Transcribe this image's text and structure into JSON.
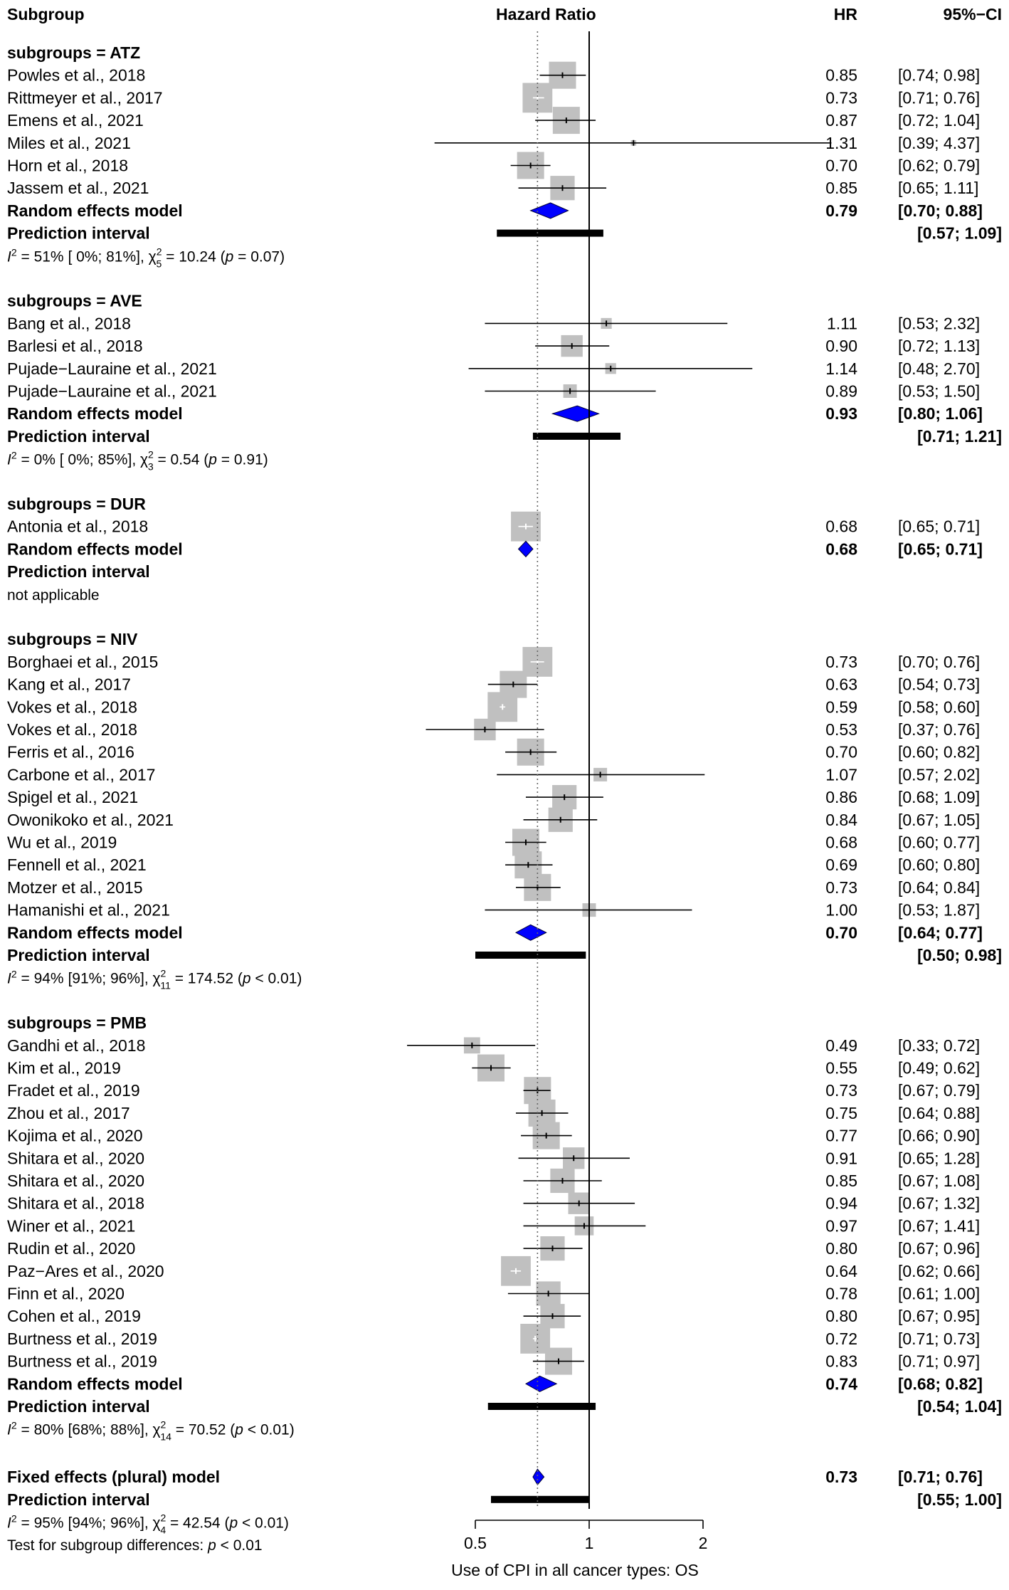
{
  "chart_data": {
    "type": "forest",
    "title": "",
    "header": {
      "subgroup": "Subgroup",
      "plot": "Hazard Ratio",
      "hr": "HR",
      "ci": "95%−CI"
    },
    "xlabel": "Use of CPI in all cancer types: OS",
    "xscale": "log",
    "xlim": [
      0.5,
      2
    ],
    "xticks": [
      0.5,
      1,
      2
    ],
    "xtick_labels": [
      "0.5",
      "1",
      "2"
    ],
    "reference_line": 1,
    "overall_line": 0.73,
    "groups": [
      {
        "label": "subgroups = ATZ",
        "studies": [
          {
            "name": "Powles et al., 2018",
            "hr": 0.85,
            "lo": 0.74,
            "hi": 0.98,
            "hr_text": "0.85",
            "ci_text": "[0.74; 0.98]",
            "w": 1.0
          },
          {
            "name": "Rittmeyer et al., 2017",
            "hr": 0.73,
            "lo": 0.71,
            "hi": 0.76,
            "hr_text": "0.73",
            "ci_text": "[0.71; 0.76]",
            "w": 1.1
          },
          {
            "name": "Emens et al., 2021",
            "hr": 0.87,
            "lo": 0.72,
            "hi": 1.04,
            "hr_text": "0.87",
            "ci_text": "[0.72; 1.04]",
            "w": 1.0
          },
          {
            "name": "Miles et al., 2021",
            "hr": 1.31,
            "lo": 0.39,
            "hi": 4.37,
            "hr_text": "1.31",
            "ci_text": "[0.39; 4.37]",
            "w": 0.2
          },
          {
            "name": "Horn et al., 2018",
            "hr": 0.7,
            "lo": 0.62,
            "hi": 0.79,
            "hr_text": "0.70",
            "ci_text": "[0.62; 0.79]",
            "w": 1.0
          },
          {
            "name": "Jassem  et al., 2021",
            "hr": 0.85,
            "lo": 0.65,
            "hi": 1.11,
            "hr_text": "0.85",
            "ci_text": "[0.65; 1.11]",
            "w": 0.9
          }
        ],
        "random": {
          "label": "Random effects model",
          "hr": 0.79,
          "lo": 0.7,
          "hi": 0.88,
          "hr_text": "0.79",
          "ci_text": "[0.70; 0.88]"
        },
        "prediction": {
          "label": "Prediction interval",
          "lo": 0.57,
          "hi": 1.09,
          "ci_text": "[0.57; 1.09]"
        },
        "het": {
          "i2": "51%",
          "ci": "[ 0%; 81%]",
          "df": "5",
          "chi": "10.24",
          "p": "= 0.07"
        }
      },
      {
        "label": "subgroups = AVE",
        "studies": [
          {
            "name": "Bang et al., 2018",
            "hr": 1.11,
            "lo": 0.53,
            "hi": 2.32,
            "hr_text": "1.11",
            "ci_text": "[0.53; 2.32]",
            "w": 0.4
          },
          {
            "name": "Barlesi et al., 2018",
            "hr": 0.9,
            "lo": 0.72,
            "hi": 1.13,
            "hr_text": "0.90",
            "ci_text": "[0.72; 1.13]",
            "w": 0.8
          },
          {
            "name": "Pujade−Lauraine et al., 2021",
            "hr": 1.14,
            "lo": 0.48,
            "hi": 2.7,
            "hr_text": "1.14",
            "ci_text": "[0.48; 2.70]",
            "w": 0.4
          },
          {
            "name": "Pujade−Lauraine et al., 2021",
            "hr": 0.89,
            "lo": 0.53,
            "hi": 1.5,
            "hr_text": "0.89",
            "ci_text": "[0.53; 1.50]",
            "w": 0.5
          }
        ],
        "random": {
          "label": "Random effects model",
          "hr": 0.93,
          "lo": 0.8,
          "hi": 1.06,
          "hr_text": "0.93",
          "ci_text": "[0.80; 1.06]"
        },
        "prediction": {
          "label": "Prediction interval",
          "lo": 0.71,
          "hi": 1.21,
          "ci_text": "[0.71; 1.21]"
        },
        "het": {
          "i2": "0%",
          "ci": "[ 0%; 85%]",
          "df": "3",
          "chi": "0.54",
          "p": "= 0.91"
        }
      },
      {
        "label": "subgroups = DUR",
        "studies": [
          {
            "name": "Antonia et al., 2018",
            "hr": 0.68,
            "lo": 0.65,
            "hi": 0.71,
            "hr_text": "0.68",
            "ci_text": "[0.65; 0.71]",
            "w": 1.1
          }
        ],
        "random": {
          "label": "Random effects model",
          "hr": 0.68,
          "lo": 0.65,
          "hi": 0.71,
          "hr_text": "0.68",
          "ci_text": "[0.65; 0.71]"
        },
        "prediction": {
          "label": "Prediction interval",
          "lo": null,
          "hi": null,
          "ci_text": ""
        },
        "note": "not applicable"
      },
      {
        "label": "subgroups = NIV",
        "studies": [
          {
            "name": "Borghaei et al., 2015",
            "hr": 0.73,
            "lo": 0.7,
            "hi": 0.76,
            "hr_text": "0.73",
            "ci_text": "[0.70; 0.76]",
            "w": 1.1
          },
          {
            "name": "Kang et al., 2017",
            "hr": 0.63,
            "lo": 0.54,
            "hi": 0.73,
            "hr_text": "0.63",
            "ci_text": "[0.54; 0.73]",
            "w": 1.0
          },
          {
            "name": "Vokes et al., 2018",
            "hr": 0.59,
            "lo": 0.58,
            "hi": 0.6,
            "hr_text": "0.59",
            "ci_text": "[0.58; 0.60]",
            "w": 1.1
          },
          {
            "name": "Vokes et al., 2018",
            "hr": 0.53,
            "lo": 0.37,
            "hi": 0.76,
            "hr_text": "0.53",
            "ci_text": "[0.37; 0.76]",
            "w": 0.8
          },
          {
            "name": "Ferris et al., 2016",
            "hr": 0.7,
            "lo": 0.6,
            "hi": 0.82,
            "hr_text": "0.70",
            "ci_text": "[0.60; 0.82]",
            "w": 1.0
          },
          {
            "name": "Carbone et al., 2017",
            "hr": 1.07,
            "lo": 0.57,
            "hi": 2.02,
            "hr_text": "1.07",
            "ci_text": "[0.57; 2.02]",
            "w": 0.5
          },
          {
            "name": "Spigel et al., 2021",
            "hr": 0.86,
            "lo": 0.68,
            "hi": 1.09,
            "hr_text": "0.86",
            "ci_text": "[0.68; 1.09]",
            "w": 0.9
          },
          {
            "name": "Owonikoko et al., 2021",
            "hr": 0.84,
            "lo": 0.67,
            "hi": 1.05,
            "hr_text": "0.84",
            "ci_text": "[0.67; 1.05]",
            "w": 0.9
          },
          {
            "name": "Wu et al., 2019",
            "hr": 0.68,
            "lo": 0.6,
            "hi": 0.77,
            "hr_text": "0.68",
            "ci_text": "[0.60; 0.77]",
            "w": 1.0
          },
          {
            "name": "Fennell et al., 2021",
            "hr": 0.69,
            "lo": 0.6,
            "hi": 0.8,
            "hr_text": "0.69",
            "ci_text": "[0.60; 0.80]",
            "w": 1.0
          },
          {
            "name": "Motzer et al., 2015",
            "hr": 0.73,
            "lo": 0.64,
            "hi": 0.84,
            "hr_text": "0.73",
            "ci_text": "[0.64; 0.84]",
            "w": 1.0
          },
          {
            "name": "Hamanishi et al., 2021",
            "hr": 1.0,
            "lo": 0.53,
            "hi": 1.87,
            "hr_text": "1.00",
            "ci_text": "[0.53; 1.87]",
            "w": 0.5
          }
        ],
        "random": {
          "label": "Random effects model",
          "hr": 0.7,
          "lo": 0.64,
          "hi": 0.77,
          "hr_text": "0.70",
          "ci_text": "[0.64; 0.77]"
        },
        "prediction": {
          "label": "Prediction interval",
          "lo": 0.5,
          "hi": 0.98,
          "ci_text": "[0.50; 0.98]"
        },
        "het": {
          "i2": "94%",
          "ci": "[91%; 96%]",
          "df": "11",
          "chi": "174.52",
          "p": "< 0.01"
        }
      },
      {
        "label": "subgroups = PMB",
        "studies": [
          {
            "name": "Gandhi et al., 2018",
            "hr": 0.49,
            "lo": 0.33,
            "hi": 0.72,
            "hr_text": "0.49",
            "ci_text": "[0.33; 0.72]",
            "w": 0.6
          },
          {
            "name": "Kim et al., 2019",
            "hr": 0.55,
            "lo": 0.49,
            "hi": 0.62,
            "hr_text": "0.55",
            "ci_text": "[0.49; 0.62]",
            "w": 1.0
          },
          {
            "name": "Fradet et al., 2019",
            "hr": 0.73,
            "lo": 0.67,
            "hi": 0.79,
            "hr_text": "0.73",
            "ci_text": "[0.67; 0.79]",
            "w": 1.0
          },
          {
            "name": "Zhou et al., 2017",
            "hr": 0.75,
            "lo": 0.64,
            "hi": 0.88,
            "hr_text": "0.75",
            "ci_text": "[0.64; 0.88]",
            "w": 1.0
          },
          {
            "name": "Kojima et al., 2020",
            "hr": 0.77,
            "lo": 0.66,
            "hi": 0.9,
            "hr_text": "0.77",
            "ci_text": "[0.66; 0.90]",
            "w": 1.0
          },
          {
            "name": "Shitara et al., 2020",
            "hr": 0.91,
            "lo": 0.65,
            "hi": 1.28,
            "hr_text": "0.91",
            "ci_text": "[0.65; 1.28]",
            "w": 0.8
          },
          {
            "name": "Shitara et al., 2020",
            "hr": 0.85,
            "lo": 0.67,
            "hi": 1.08,
            "hr_text": "0.85",
            "ci_text": "[0.67; 1.08]",
            "w": 0.9
          },
          {
            "name": "Shitara et al., 2018",
            "hr": 0.94,
            "lo": 0.67,
            "hi": 1.32,
            "hr_text": "0.94",
            "ci_text": "[0.67; 1.32]",
            "w": 0.8
          },
          {
            "name": "Winer et al., 2021",
            "hr": 0.97,
            "lo": 0.67,
            "hi": 1.41,
            "hr_text": "0.97",
            "ci_text": "[0.67; 1.41]",
            "w": 0.7
          },
          {
            "name": "Rudin et al., 2020",
            "hr": 0.8,
            "lo": 0.67,
            "hi": 0.96,
            "hr_text": "0.80",
            "ci_text": "[0.67; 0.96]",
            "w": 0.9
          },
          {
            "name": "Paz−Ares et al., 2020",
            "hr": 0.64,
            "lo": 0.62,
            "hi": 0.66,
            "hr_text": "0.64",
            "ci_text": "[0.62; 0.66]",
            "w": 1.1
          },
          {
            "name": "Finn et al., 2020",
            "hr": 0.78,
            "lo": 0.61,
            "hi": 1.0,
            "hr_text": "0.78",
            "ci_text": "[0.61; 1.00]",
            "w": 0.9
          },
          {
            "name": "Cohen et al., 2019",
            "hr": 0.8,
            "lo": 0.67,
            "hi": 0.95,
            "hr_text": "0.80",
            "ci_text": "[0.67; 0.95]",
            "w": 0.9
          },
          {
            "name": "Burtness et al., 2019",
            "hr": 0.72,
            "lo": 0.71,
            "hi": 0.73,
            "hr_text": "0.72",
            "ci_text": "[0.71; 0.73]",
            "w": 1.1
          },
          {
            "name": "Burtness et al., 2019",
            "hr": 0.83,
            "lo": 0.71,
            "hi": 0.97,
            "hr_text": "0.83",
            "ci_text": "[0.71; 0.97]",
            "w": 1.0
          }
        ],
        "random": {
          "label": "Random effects model",
          "hr": 0.74,
          "lo": 0.68,
          "hi": 0.82,
          "hr_text": "0.74",
          "ci_text": "[0.68; 0.82]"
        },
        "prediction": {
          "label": "Prediction interval",
          "lo": 0.54,
          "hi": 1.04,
          "ci_text": "[0.54; 1.04]"
        },
        "het": {
          "i2": "80%",
          "ci": "[68%; 88%]",
          "df": "14",
          "chi": "70.52",
          "p": "< 0.01"
        }
      }
    ],
    "overall": {
      "label": "Fixed effects (plural) model",
      "hr": 0.73,
      "lo": 0.71,
      "hi": 0.76,
      "hr_text": "0.73",
      "ci_text": "[0.71; 0.76]",
      "prediction": {
        "label": "Prediction interval",
        "lo": 0.55,
        "hi": 1.0,
        "ci_text": "[0.55; 1.00]"
      },
      "het": {
        "i2": "95%",
        "ci": "[94%; 96%]",
        "df": "4",
        "chi": "42.54",
        "p": "< 0.01"
      },
      "subgroup_test": {
        "label": "Test for subgroup differences:",
        "p": "< 0.01"
      }
    },
    "colors": {
      "box": "#c0c0c0",
      "diamond": "#0000ff",
      "line": "#000000",
      "dotted": "#666666"
    }
  }
}
